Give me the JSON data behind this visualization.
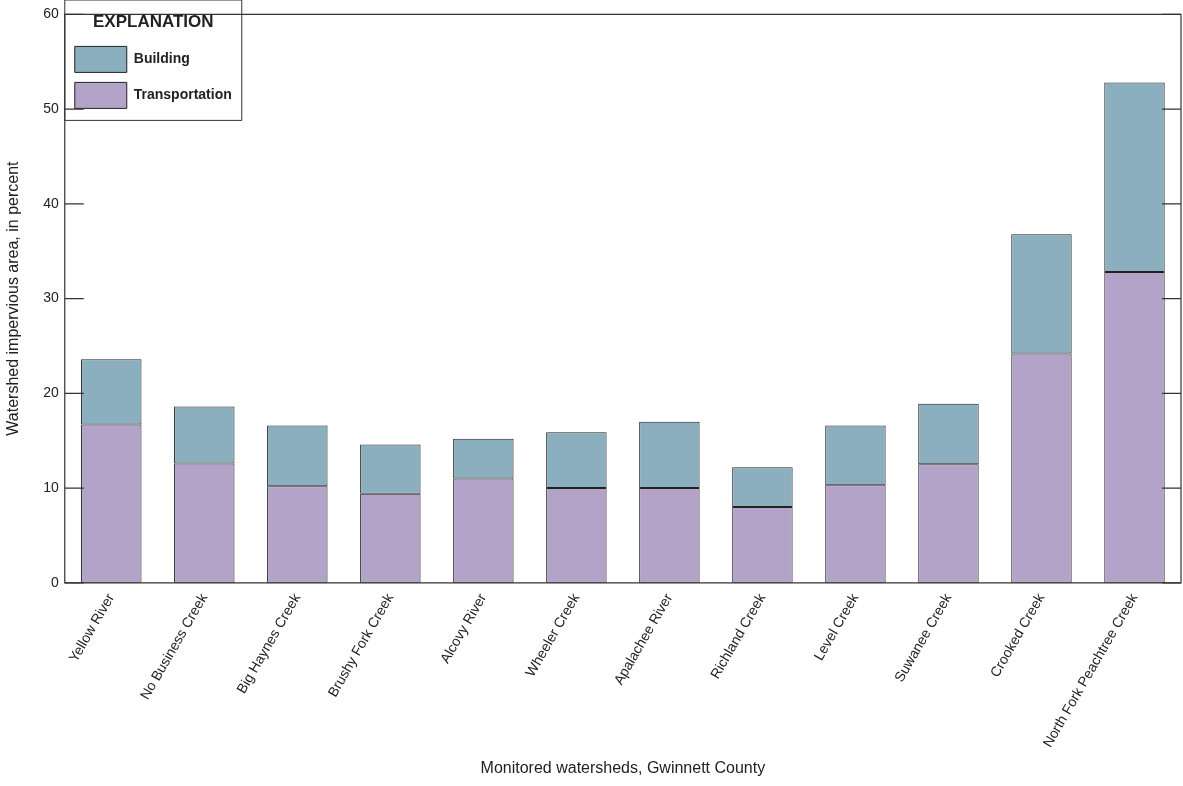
{
  "chart_data": {
    "type": "bar",
    "stacked": true,
    "xlabel": "Monitored watersheds, Gwinnett County",
    "ylabel": "Watershed impervious area, in percent",
    "legend_title": "EXPLANATION",
    "legend": "top left",
    "categories": [
      "Yellow River",
      "No Business Creek",
      "Big Haynes Creek",
      "Brushy Fork Creek",
      "Alcovy River",
      "Wheeler Creek",
      "Apalachee River",
      "Richland Creek",
      "Level Creek",
      "Suwanee Creek",
      "Crooked Creek",
      "North Fork Peachtree Creek"
    ],
    "series": [
      {
        "name": "Transportation",
        "color": "#b3a3c9",
        "values": [
          16.7,
          12.6,
          10.2,
          9.4,
          11.0,
          10.0,
          10.0,
          8.0,
          10.3,
          12.5,
          24.2,
          32.8
        ]
      },
      {
        "name": "Building",
        "color": "#8cafbf",
        "values": [
          6.9,
          6.0,
          6.4,
          5.2,
          4.2,
          5.9,
          7.0,
          4.2,
          6.3,
          6.4,
          12.6,
          20.0
        ]
      }
    ],
    "ylim": [
      0,
      60
    ],
    "yticks": [
      0,
      10,
      20,
      30,
      40,
      50,
      60
    ],
    "grid": false
  }
}
